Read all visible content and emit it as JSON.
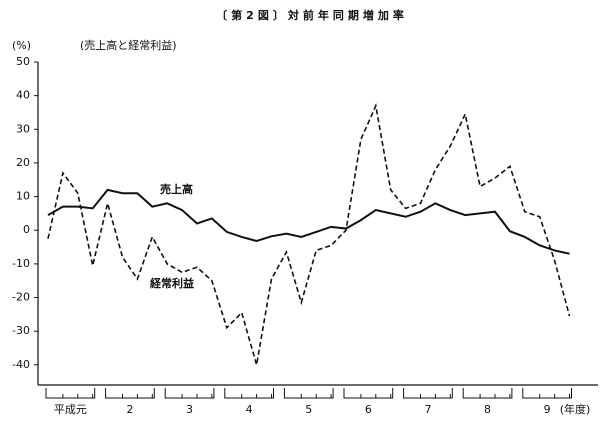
{
  "chart_data": {
    "type": "line",
    "title": "〔第2図〕対前年同期増加率",
    "subtitle": "(売上高と経常利益)",
    "y_label": "(%)",
    "x_label": "(年度)",
    "year_labels": [
      "平成元",
      "2",
      "3",
      "4",
      "5",
      "6",
      "7",
      "8",
      "9"
    ],
    "categories": [
      null,
      null,
      null,
      null,
      null,
      null,
      null,
      null,
      null,
      null,
      null,
      null,
      null,
      null,
      null,
      null,
      null,
      null,
      null,
      null,
      null,
      null,
      null,
      null,
      null,
      null,
      null,
      null,
      null,
      null,
      null,
      null,
      null,
      null,
      null,
      null
    ],
    "series": [
      {
        "name": "売上高",
        "color": "#111111",
        "dash": false,
        "values": [
          4.5,
          7,
          7,
          6.5,
          12,
          11,
          11,
          7,
          8,
          6,
          2,
          3.5,
          -0.5,
          -2,
          -3.2,
          -1.8,
          -1,
          -2,
          -0.5,
          1,
          0.5,
          3,
          6,
          5,
          4,
          5.5,
          8,
          6,
          4.5,
          5,
          5.5,
          -0.3,
          -2,
          -4.5,
          -6,
          -7
        ]
      },
      {
        "name": "経常利益",
        "color": "#111111",
        "dash": true,
        "values": [
          -2.5,
          17,
          11,
          -10.5,
          8,
          -8,
          -14.5,
          -2,
          -10,
          -12.5,
          -11,
          -15,
          -29,
          -24.5,
          -40,
          -14.5,
          -6.5,
          -21.5,
          -6,
          -4.5,
          0,
          27,
          37,
          12,
          6.5,
          8,
          18,
          25,
          34.5,
          13,
          15.5,
          19,
          5.5,
          4,
          -9,
          -25.5
        ]
      }
    ],
    "ylim": [
      -46,
      50
    ],
    "yticks": [
      -40,
      -30,
      -20,
      -10,
      0,
      10,
      20,
      30,
      40,
      50
    ]
  }
}
